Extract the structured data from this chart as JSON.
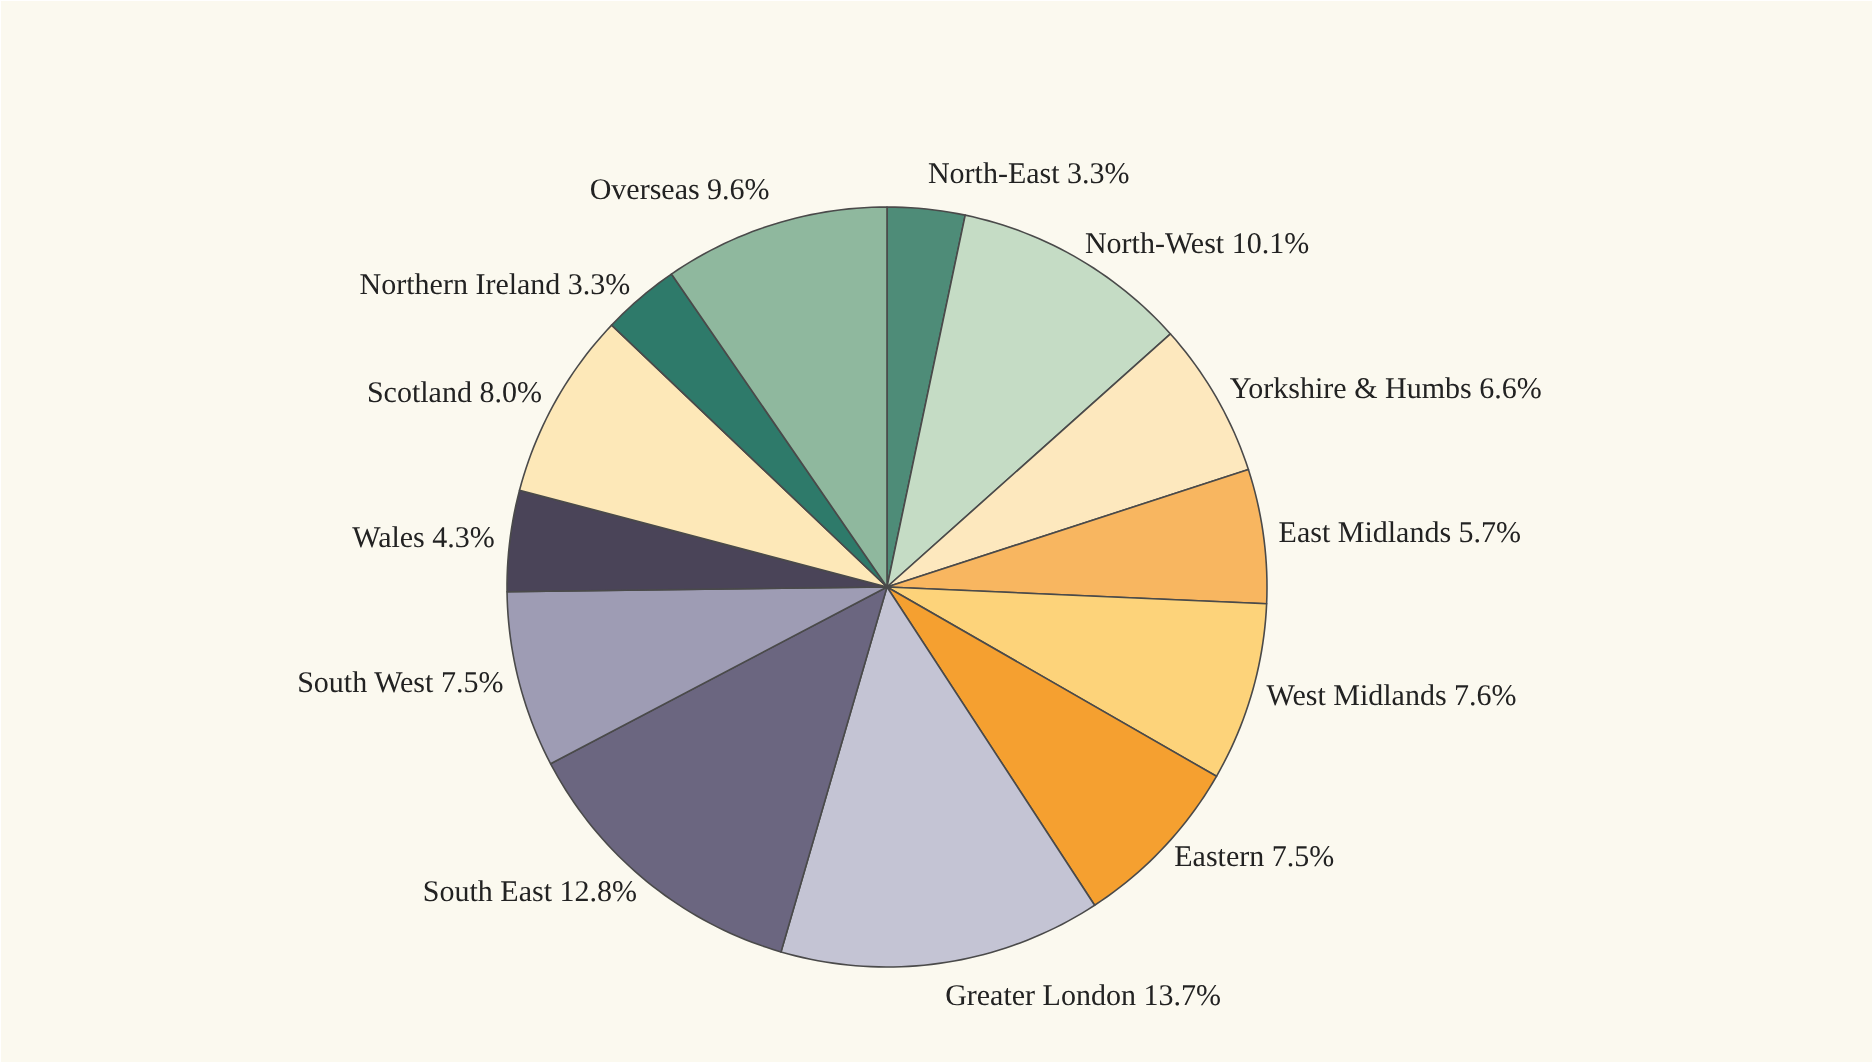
{
  "chart_data": {
    "type": "pie",
    "categories": [
      "North-East",
      "North-West",
      "Yorkshire & Humbs",
      "East Midlands",
      "West Midlands",
      "Eastern",
      "Greater London",
      "South East",
      "South West",
      "Wales",
      "Scotland",
      "Northern Ireland",
      "Overseas"
    ],
    "values": [
      3.3,
      10.1,
      6.6,
      5.7,
      7.6,
      7.5,
      13.7,
      12.8,
      7.5,
      4.3,
      8.0,
      3.3,
      9.6
    ],
    "value_labels": [
      "3.3%",
      "10.1%",
      "6.6%",
      "5.7%",
      "7.6%",
      "7.5%",
      "13.7%",
      "12.8%",
      "7.5%",
      "4.3%",
      "8.0%",
      "3.3%",
      "9.6%"
    ],
    "colors": [
      "#4e8c78",
      "#c5dcc5",
      "#fde8be",
      "#f8b660",
      "#fdd37a",
      "#f5a030",
      "#c4c4d4",
      "#6b6680",
      "#9e9cb4",
      "#4a4458",
      "#fde8b8",
      "#2e7a6a",
      "#8fb89e"
    ]
  }
}
